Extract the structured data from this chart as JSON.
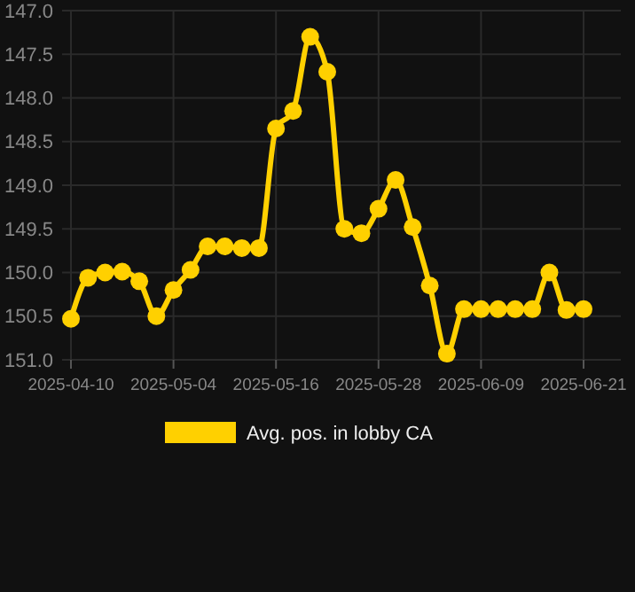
{
  "chart_data": {
    "type": "line",
    "categories": [
      "2025-04-10",
      null,
      null,
      null,
      null,
      null,
      "2025-05-04",
      null,
      null,
      null,
      null,
      null,
      "2025-05-16",
      null,
      null,
      null,
      null,
      null,
      "2025-05-28",
      null,
      null,
      null,
      null,
      null,
      "2025-06-09",
      null,
      null,
      null,
      null,
      null,
      "2025-06-21"
    ],
    "series": [
      {
        "name": "Avg. pos. in lobby CA",
        "color": "#ffd000",
        "values": [
          150.53,
          150.06,
          150.0,
          149.99,
          150.1,
          150.5,
          150.2,
          149.97,
          149.7,
          149.7,
          149.72,
          149.72,
          148.35,
          148.15,
          147.3,
          147.7,
          149.5,
          149.55,
          149.27,
          148.94,
          149.48,
          150.15,
          150.93,
          150.42,
          150.42,
          150.42,
          150.42,
          150.42,
          150.0,
          150.43,
          150.42
        ]
      }
    ],
    "ylim": [
      151.0,
      147.0
    ],
    "yticks": [
      {
        "value": 147,
        "label": "147.0"
      },
      {
        "value": 147.5,
        "label": "147.5"
      },
      {
        "value": 148,
        "label": "148.0"
      },
      {
        "value": 148.5,
        "label": "148.5"
      },
      {
        "value": 149,
        "label": "149.0"
      },
      {
        "value": 149.5,
        "label": "149.5"
      },
      {
        "value": 150,
        "label": "150.0"
      },
      {
        "value": 150.5,
        "label": "150.5"
      },
      {
        "value": 151,
        "label": "151.0"
      }
    ],
    "grid": true,
    "legend": "bottom",
    "marker": "circle",
    "line_style": "solid"
  }
}
